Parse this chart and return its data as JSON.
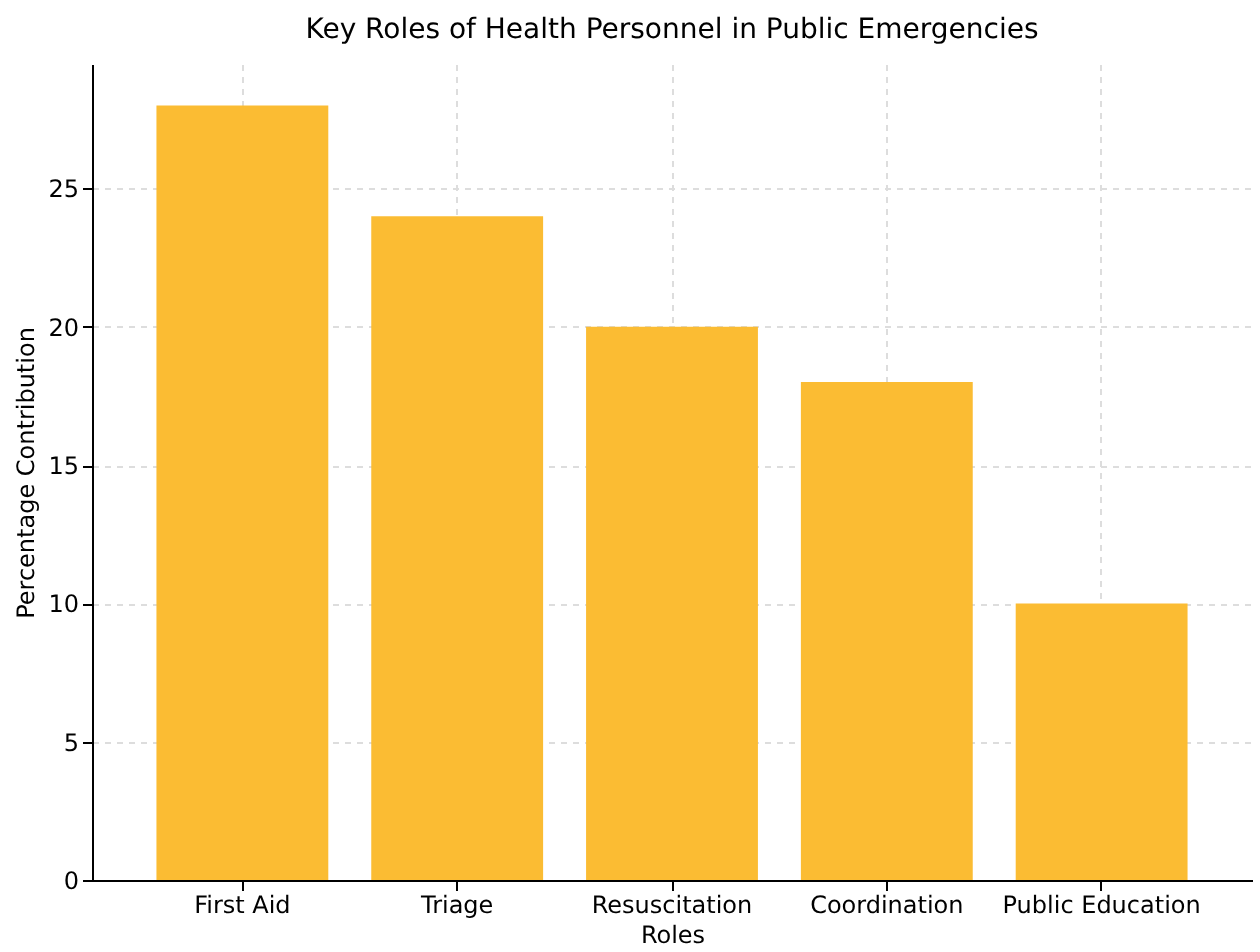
{
  "chart_data": {
    "type": "bar",
    "title": "Key Roles of Health Personnel in Public Emergencies",
    "xlabel": "Roles",
    "ylabel": "Percentage Contribution",
    "categories": [
      "First Aid",
      "Triage",
      "Resuscitation",
      "Coordination",
      "Public Education"
    ],
    "values": [
      28,
      24,
      20,
      18,
      10
    ],
    "color": "#fbbc33",
    "ylim": [
      0,
      29.5
    ],
    "yticks": [
      0,
      5,
      10,
      15,
      20,
      25
    ],
    "grid": true
  }
}
